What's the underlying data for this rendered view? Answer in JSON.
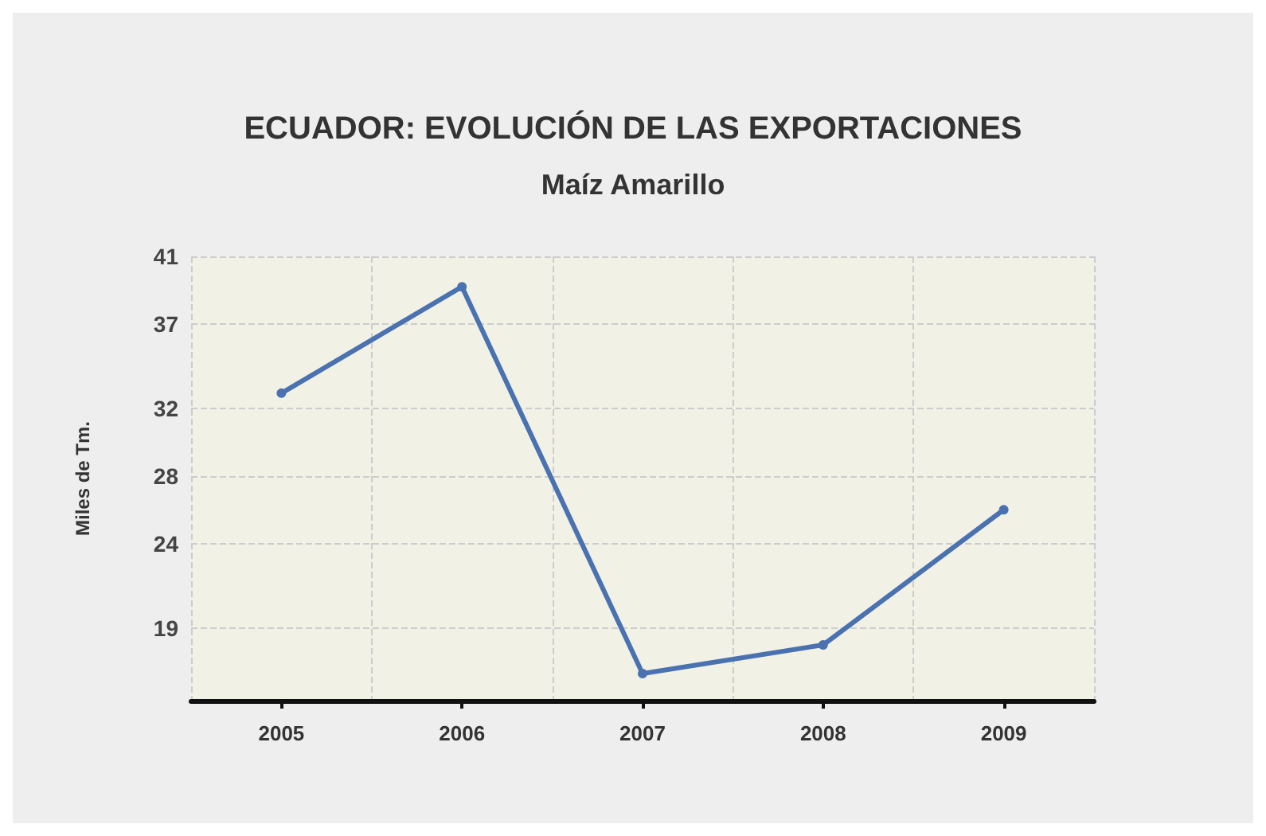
{
  "chart_data": {
    "type": "line",
    "title": "ECUADOR: EVOLUCIÓN DE LAS EXPORTACIONES",
    "subtitle": "Maíz Amarillo",
    "ylabel": "Miles de Tm.",
    "categories": [
      "2005",
      "2006",
      "2007",
      "2008",
      "2009"
    ],
    "series": [
      {
        "color": "#4a72b0",
        "values": [
          32.9,
          39.2,
          16.3,
          18.0,
          26.0
        ]
      }
    ],
    "ylim": [
      14.7,
      41
    ],
    "yticks": [
      19,
      24,
      28,
      32,
      37,
      41
    ],
    "grid": true,
    "marker": "circle",
    "line_style": "solid"
  }
}
